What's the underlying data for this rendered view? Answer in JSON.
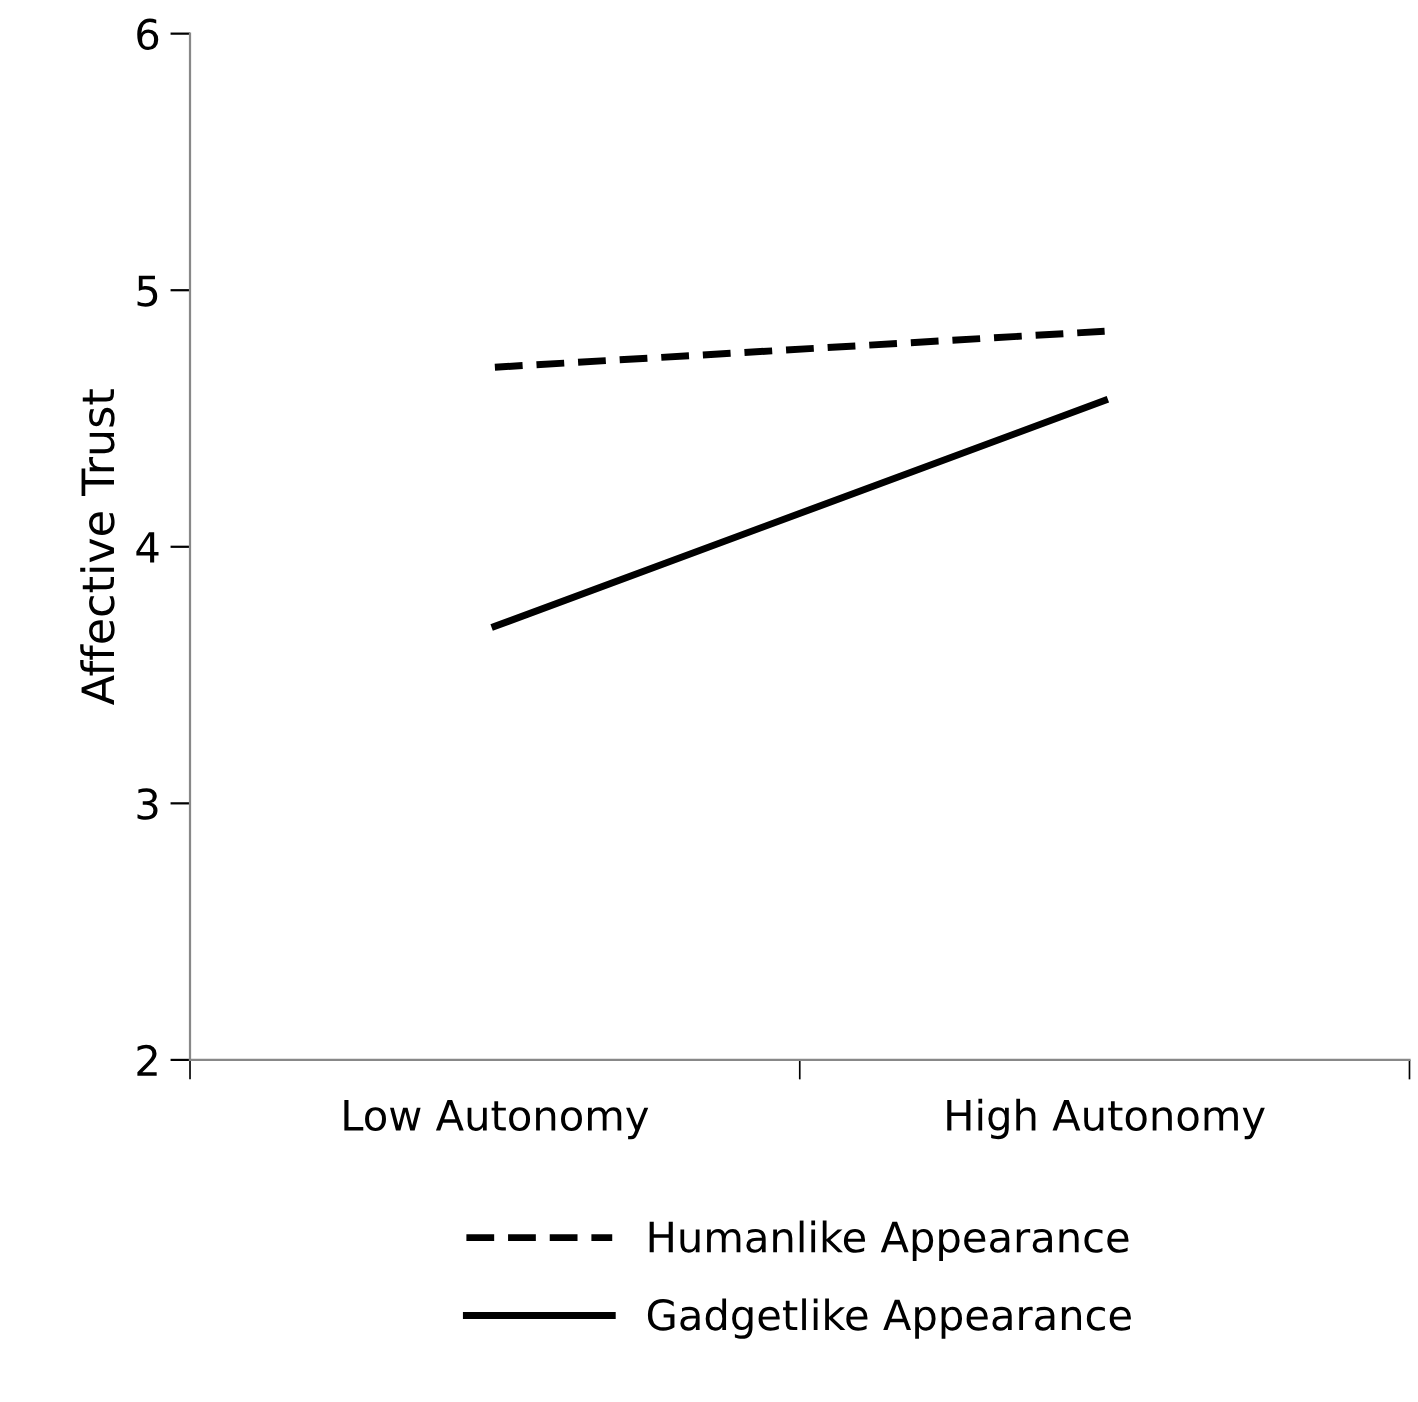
{
  "chart_data": {
    "type": "line",
    "ylabel": "Affective Trust",
    "categories": [
      "Low Autonomy",
      "High Autonomy"
    ],
    "series": [
      {
        "name": "Humanlike Appearance",
        "color": "#000000",
        "values": [
          4.7,
          4.84
        ],
        "line_style": "dashed"
      },
      {
        "name": "Gadgetlike Appearance",
        "color": "#000000",
        "values": [
          3.69,
          4.57
        ],
        "line_style": "solid"
      }
    ],
    "ylim": [
      2,
      6
    ],
    "yticks": [
      2,
      3,
      4,
      5,
      6
    ],
    "grid": false,
    "legend": "bottom",
    "marker": "none"
  }
}
